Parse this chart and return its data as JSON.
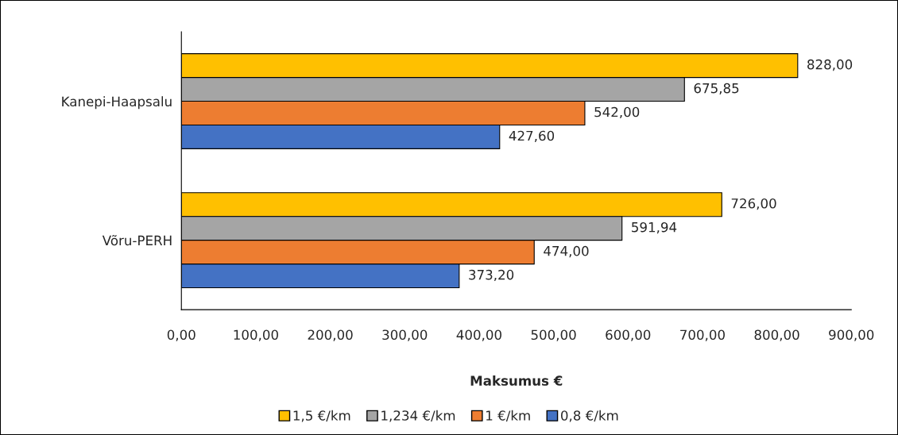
{
  "chart_data": {
    "type": "bar",
    "orientation": "horizontal",
    "categories": [
      "Kanepi-Haapsalu",
      "Võru-PERH"
    ],
    "series": [
      {
        "name": "1,5 €/km",
        "color": "#ffc000",
        "values": [
          828.0,
          726.0
        ],
        "value_labels": [
          "828,00",
          "726,00"
        ]
      },
      {
        "name": "1,234 €/km",
        "color": "#a5a5a5",
        "values": [
          675.85,
          591.94
        ],
        "value_labels": [
          "675,85",
          "591,94"
        ]
      },
      {
        "name": "1 €/km",
        "color": "#ed7d31",
        "values": [
          542.0,
          474.0
        ],
        "value_labels": [
          "542,00",
          "474,00"
        ]
      },
      {
        "name": "0,8 €/km",
        "color": "#4472c4",
        "values": [
          427.6,
          373.2
        ],
        "value_labels": [
          "427,60",
          "373,20"
        ]
      }
    ],
    "xlabel": "Maksumus €",
    "xlim": [
      0,
      900
    ],
    "xticks": [
      {
        "value": 0,
        "label": "0,00"
      },
      {
        "value": 100,
        "label": "100,00"
      },
      {
        "value": 200,
        "label": "200,00"
      },
      {
        "value": 300,
        "label": "300,00"
      },
      {
        "value": 400,
        "label": "400,00"
      },
      {
        "value": 500,
        "label": "500,00"
      },
      {
        "value": 600,
        "label": "600,00"
      },
      {
        "value": 700,
        "label": "700,00"
      },
      {
        "value": 800,
        "label": "800,00"
      },
      {
        "value": 900,
        "label": "900,00"
      }
    ],
    "grid": false,
    "legend": "bottom"
  }
}
